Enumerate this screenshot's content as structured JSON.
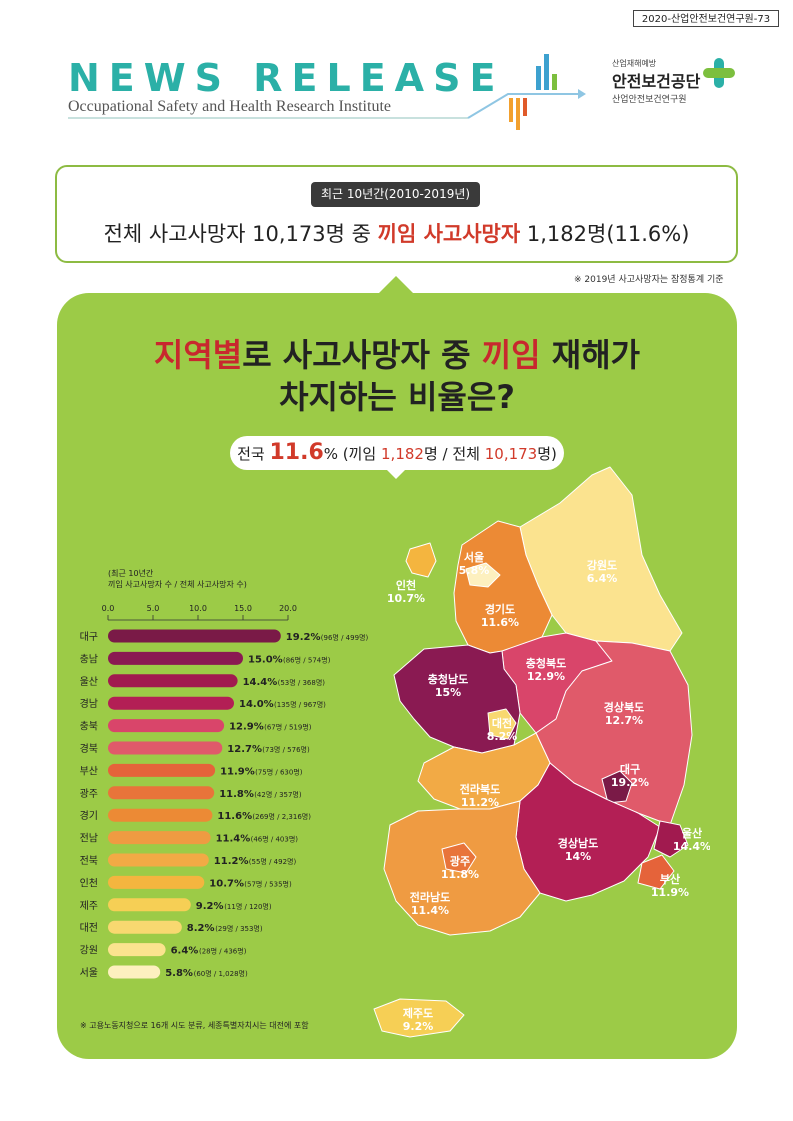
{
  "doc_number": "2020-산업안전보건연구원-73",
  "header": {
    "news_release": "NEWS RELEASE",
    "institute": "Occupational Safety and Health Research Institute",
    "logo_small": "산업재해예방",
    "logo_main": "안전보건공단",
    "logo_sub": "산업안전보건연구원"
  },
  "summary": {
    "period": "최근 10년간(2010-2019년)",
    "headline_part1": "전체 사고사망자 10,173명 중 ",
    "headline_red": "끼임 사고사망자",
    "headline_part2": " 1,182명(11.6%)",
    "note": "※ 2019년 사고사망자는 잠정통계 기준"
  },
  "infographic": {
    "title_red1": "지역별",
    "title_mid": "로 사고사망자 중 ",
    "title_red2": "끼임",
    "title_end": " 재해가",
    "title_line2": "차지하는 비율은?",
    "national_label": "전국 ",
    "national_pct": "11.6",
    "national_pct_unit": "%",
    "national_detail1": " (끼임 ",
    "national_detail_num1": "1,182",
    "national_detail2": "명 / 전체 ",
    "national_detail_num2": "10,173",
    "national_detail3": "명)",
    "axis_note_line1": "최근 10년간",
    "axis_note_line2": "끼임 사고사망자 수 / 전체 사고사망자 수",
    "footnote": "※ 고용노동지청으로 16개 시도 분류, 세종특별자치시는 대전에 포함"
  },
  "chart_data": {
    "type": "bar",
    "orientation": "horizontal",
    "xlim": [
      0,
      20
    ],
    "ticks": [
      "0.0",
      "5.0",
      "10.0",
      "15.0",
      "20.0"
    ],
    "categories": [
      "대구",
      "충남",
      "울산",
      "경남",
      "충북",
      "경북",
      "부산",
      "광주",
      "경기",
      "전남",
      "전북",
      "인천",
      "제주",
      "대전",
      "강원",
      "서울"
    ],
    "values": [
      19.2,
      15.0,
      14.4,
      14.0,
      12.9,
      12.7,
      11.9,
      11.8,
      11.6,
      11.4,
      11.2,
      10.7,
      9.2,
      8.2,
      6.4,
      5.8
    ],
    "value_labels": [
      "19.2%",
      "15.0%",
      "14.4%",
      "14.0%",
      "12.9%",
      "12.7%",
      "11.9%",
      "11.8%",
      "11.6%",
      "11.4%",
      "11.2%",
      "10.7%",
      "9.2%",
      "8.2%",
      "6.4%",
      "5.8%"
    ],
    "detail_labels": [
      "(96명 / 499명)",
      "(86명 / 574명)",
      "(53명 / 368명)",
      "(135명 / 967명)",
      "(67명 / 519명)",
      "(73명 / 576명)",
      "(75명 / 630명)",
      "(42명 / 357명)",
      "(269명 / 2,316명)",
      "(46명 / 403명)",
      "(55명 / 492명)",
      "(57명 / 535명)",
      "(11명 / 120명)",
      "(29명 / 353명)",
      "(28명 / 436명)",
      "(60명 / 1,028명)"
    ],
    "colors": [
      "#7a1a47",
      "#8a1a52",
      "#a11a4f",
      "#b31f55",
      "#d9456a",
      "#e05a6a",
      "#e5633a",
      "#e8743a",
      "#ec8a35",
      "#ef9b42",
      "#f2aa45",
      "#f4b53f",
      "#f6cf55",
      "#f8d870",
      "#fbe38f",
      "#fdf0bf"
    ]
  },
  "map_regions": [
    {
      "name": "서울",
      "pct": "5.8%",
      "color": "#fdf0bf"
    },
    {
      "name": "인천",
      "pct": "10.7%",
      "color": "#f4b53f"
    },
    {
      "name": "경기도",
      "pct": "11.6%",
      "color": "#ec8a35"
    },
    {
      "name": "강원도",
      "pct": "6.4%",
      "color": "#fbe38f"
    },
    {
      "name": "충청북도",
      "pct": "12.9%",
      "color": "#d9456a"
    },
    {
      "name": "충청남도",
      "pct": "15%",
      "color": "#8a1a52"
    },
    {
      "name": "대전",
      "pct": "8.2%",
      "color": "#f8d870"
    },
    {
      "name": "경상북도",
      "pct": "12.7%",
      "color": "#e05a6a"
    },
    {
      "name": "대구",
      "pct": "19.2%",
      "color": "#7a1a47"
    },
    {
      "name": "전라북도",
      "pct": "11.2%",
      "color": "#f2aa45"
    },
    {
      "name": "광주",
      "pct": "11.8%",
      "color": "#e8743a"
    },
    {
      "name": "전라남도",
      "pct": "11.4%",
      "color": "#ef9b42"
    },
    {
      "name": "경상남도",
      "pct": "14%",
      "color": "#b31f55"
    },
    {
      "name": "울산",
      "pct": "14.4%",
      "color": "#a11a4f"
    },
    {
      "name": "부산",
      "pct": "11.9%",
      "color": "#e5633a"
    },
    {
      "name": "제주도",
      "pct": "9.2%",
      "color": "#f6cf55"
    }
  ]
}
